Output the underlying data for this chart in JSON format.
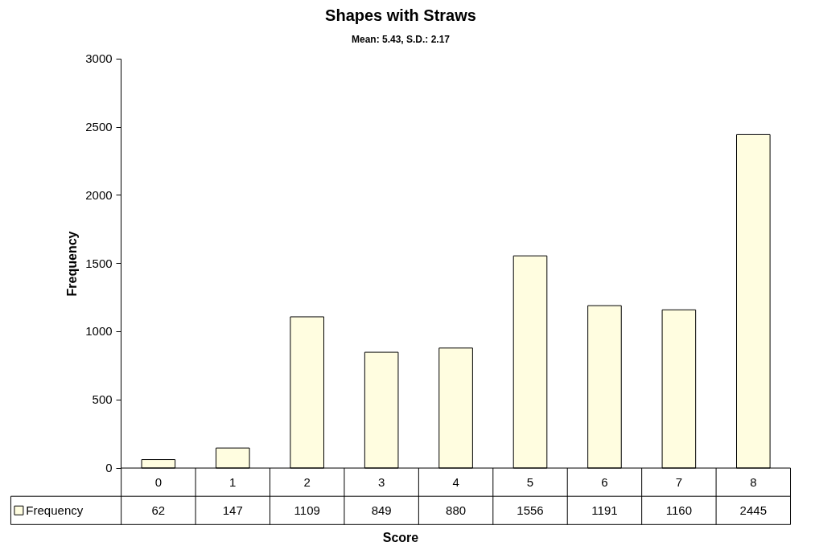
{
  "chart_data": {
    "type": "bar",
    "title": "Shapes with Straws",
    "subtitle": "Mean: 5.43, S.D.: 2.17",
    "xlabel": "Score",
    "ylabel": "Frequency",
    "categories": [
      "0",
      "1",
      "2",
      "3",
      "4",
      "5",
      "6",
      "7",
      "8"
    ],
    "series": [
      {
        "name": "Frequency",
        "color": "#fffde0",
        "values": [
          62,
          147,
          1109,
          849,
          880,
          1556,
          1191,
          1160,
          2445
        ]
      }
    ],
    "ylim": [
      0,
      3000
    ],
    "yticks": [
      0,
      500,
      1000,
      1500,
      2000,
      2500,
      3000
    ],
    "legend": "bottom",
    "data_labels": true
  }
}
